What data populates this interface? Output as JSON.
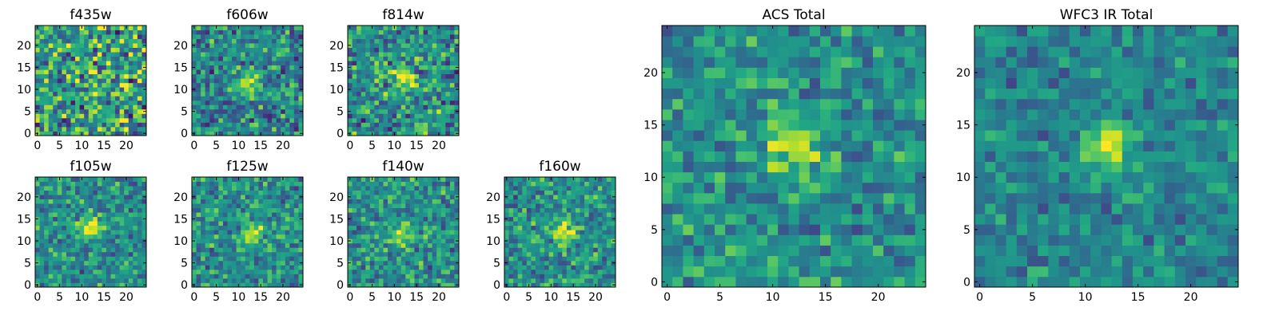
{
  "chart_data": {
    "type": "heatmap",
    "colormap": "viridis",
    "grid": false,
    "panels": [
      {
        "title": "f435w",
        "xlim": [
          0,
          24
        ],
        "ylim": [
          0,
          24
        ],
        "xticks": [
          "0",
          "5",
          "10",
          "15",
          "20"
        ],
        "yticks": [
          "0",
          "5",
          "10",
          "15",
          "20"
        ],
        "source_peak": [
          12,
          13
        ],
        "source_strength": 0.15,
        "noise": 0.55,
        "base": 0.55
      },
      {
        "title": "f606w",
        "xlim": [
          0,
          24
        ],
        "ylim": [
          0,
          24
        ],
        "xticks": [
          "0",
          "5",
          "10",
          "15",
          "20"
        ],
        "yticks": [
          "0",
          "5",
          "10",
          "15",
          "20"
        ],
        "source_peak": [
          12,
          12
        ],
        "source_strength": 0.45,
        "noise": 0.4,
        "base": 0.45
      },
      {
        "title": "f814w",
        "xlim": [
          0,
          24
        ],
        "ylim": [
          0,
          24
        ],
        "xticks": [
          "0",
          "5",
          "10",
          "15",
          "20"
        ],
        "yticks": [
          "0",
          "5",
          "10",
          "15",
          "20"
        ],
        "source_peak": [
          12,
          12
        ],
        "source_strength": 0.4,
        "noise": 0.45,
        "base": 0.5
      },
      {
        "title": "f105w",
        "xlim": [
          0,
          24
        ],
        "ylim": [
          0,
          24
        ],
        "xticks": [
          "0",
          "5",
          "10",
          "15",
          "20"
        ],
        "yticks": [
          "0",
          "5",
          "10",
          "15",
          "20"
        ],
        "source_peak": [
          12,
          13
        ],
        "source_strength": 0.45,
        "noise": 0.35,
        "base": 0.5
      },
      {
        "title": "f125w",
        "xlim": [
          0,
          24
        ],
        "ylim": [
          0,
          24
        ],
        "xticks": [
          "0",
          "5",
          "10",
          "15",
          "20"
        ],
        "yticks": [
          "0",
          "5",
          "10",
          "15",
          "20"
        ],
        "source_peak": [
          13,
          12
        ],
        "source_strength": 0.45,
        "noise": 0.35,
        "base": 0.5
      },
      {
        "title": "f140w",
        "xlim": [
          0,
          24
        ],
        "ylim": [
          0,
          24
        ],
        "xticks": [
          "0",
          "5",
          "10",
          "15",
          "20"
        ],
        "yticks": [
          "0",
          "5",
          "10",
          "15",
          "20"
        ],
        "source_peak": [
          12,
          12
        ],
        "source_strength": 0.45,
        "noise": 0.35,
        "base": 0.5
      },
      {
        "title": "f160w",
        "xlim": [
          0,
          24
        ],
        "ylim": [
          0,
          24
        ],
        "xticks": [
          "0",
          "5",
          "10",
          "15",
          "20"
        ],
        "yticks": [
          "0",
          "5",
          "10",
          "15",
          "20"
        ],
        "source_peak": [
          13,
          12
        ],
        "source_strength": 0.45,
        "noise": 0.35,
        "base": 0.5
      },
      {
        "title": "ACS Total",
        "xlim": [
          0,
          24
        ],
        "ylim": [
          0,
          24
        ],
        "xticks": [
          "0",
          "5",
          "10",
          "15",
          "20"
        ],
        "yticks": [
          "0",
          "5",
          "10",
          "15",
          "20"
        ],
        "source_peak": [
          12,
          13
        ],
        "source_strength": 0.45,
        "noise": 0.3,
        "base": 0.5
      },
      {
        "title": "WFC3 IR Total",
        "xlim": [
          0,
          24
        ],
        "ylim": [
          0,
          24
        ],
        "xticks": [
          "0",
          "5",
          "10",
          "15",
          "20"
        ],
        "yticks": [
          "0",
          "5",
          "10",
          "15",
          "20"
        ],
        "source_peak": [
          12,
          13
        ],
        "source_strength": 0.5,
        "noise": 0.25,
        "base": 0.45
      }
    ]
  }
}
